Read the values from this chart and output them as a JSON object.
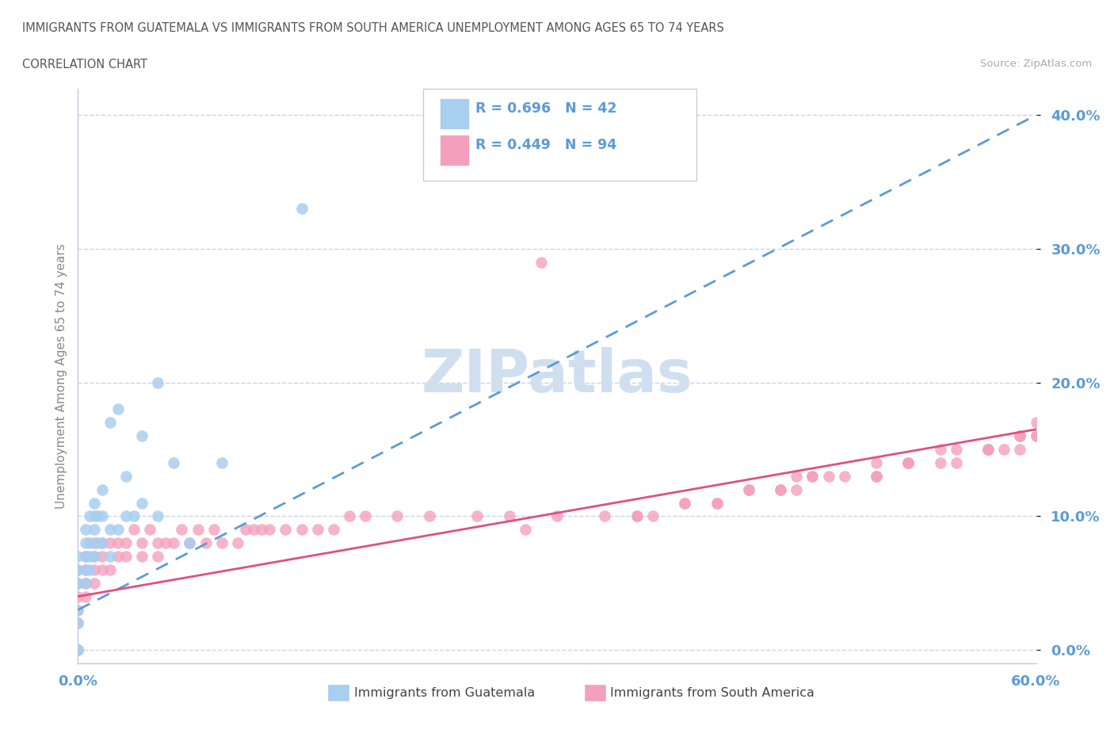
{
  "title_line1": "IMMIGRANTS FROM GUATEMALA VS IMMIGRANTS FROM SOUTH AMERICA UNEMPLOYMENT AMONG AGES 65 TO 74 YEARS",
  "title_line2": "CORRELATION CHART",
  "source": "Source: ZipAtlas.com",
  "ylabel": "Unemployment Among Ages 65 to 74 years",
  "xmin": 0.0,
  "xmax": 0.6,
  "ymin": -0.01,
  "ymax": 0.42,
  "yticks": [
    0.0,
    0.1,
    0.2,
    0.3,
    0.4
  ],
  "ytick_labels": [
    "0.0%",
    "10.0%",
    "20.0%",
    "30.0%",
    "40.0%"
  ],
  "color_guatemala": "#a8cef0",
  "color_southamerica": "#f4a0bc",
  "color_trend_guatemala": "#5b9bd5",
  "color_trend_southamerica": "#e05080",
  "color_grid": "#c8d4e8",
  "color_axis_ticks": "#5b9bd5",
  "watermark_color": "#d0dff0",
  "guatemala_x": [
    0.0,
    0.0,
    0.0,
    0.0,
    0.0,
    0.0,
    0.0,
    0.0,
    0.005,
    0.005,
    0.005,
    0.005,
    0.005,
    0.007,
    0.007,
    0.007,
    0.007,
    0.01,
    0.01,
    0.01,
    0.01,
    0.012,
    0.012,
    0.015,
    0.015,
    0.015,
    0.02,
    0.02,
    0.02,
    0.025,
    0.025,
    0.03,
    0.03,
    0.035,
    0.04,
    0.04,
    0.05,
    0.05,
    0.06,
    0.07,
    0.09,
    0.14
  ],
  "guatemala_y": [
    0.0,
    0.0,
    0.0,
    0.02,
    0.03,
    0.05,
    0.06,
    0.07,
    0.05,
    0.06,
    0.07,
    0.08,
    0.09,
    0.06,
    0.07,
    0.08,
    0.1,
    0.07,
    0.09,
    0.1,
    0.11,
    0.08,
    0.1,
    0.08,
    0.1,
    0.12,
    0.07,
    0.09,
    0.17,
    0.09,
    0.18,
    0.1,
    0.13,
    0.1,
    0.11,
    0.16,
    0.1,
    0.2,
    0.14,
    0.08,
    0.14,
    0.33
  ],
  "southamerica_x": [
    0.0,
    0.0,
    0.0,
    0.0,
    0.0,
    0.0,
    0.0,
    0.005,
    0.005,
    0.005,
    0.005,
    0.01,
    0.01,
    0.01,
    0.01,
    0.015,
    0.015,
    0.015,
    0.02,
    0.02,
    0.025,
    0.025,
    0.03,
    0.03,
    0.035,
    0.04,
    0.04,
    0.045,
    0.05,
    0.05,
    0.055,
    0.06,
    0.065,
    0.07,
    0.075,
    0.08,
    0.085,
    0.09,
    0.1,
    0.105,
    0.11,
    0.115,
    0.12,
    0.13,
    0.14,
    0.15,
    0.16,
    0.17,
    0.18,
    0.2,
    0.22,
    0.25,
    0.27,
    0.3,
    0.33,
    0.35,
    0.38,
    0.4,
    0.42,
    0.44,
    0.46,
    0.48,
    0.5,
    0.52,
    0.54,
    0.55,
    0.57,
    0.58,
    0.59,
    0.6,
    0.45,
    0.46,
    0.5,
    0.52,
    0.55,
    0.57,
    0.59,
    0.6,
    0.35,
    0.36,
    0.38,
    0.4,
    0.42,
    0.44,
    0.45,
    0.47,
    0.5,
    0.52,
    0.54,
    0.57,
    0.59,
    0.6,
    0.28,
    0.29
  ],
  "southamerica_y": [
    0.0,
    0.0,
    0.02,
    0.03,
    0.04,
    0.05,
    0.06,
    0.04,
    0.05,
    0.06,
    0.07,
    0.05,
    0.06,
    0.07,
    0.08,
    0.06,
    0.07,
    0.08,
    0.06,
    0.08,
    0.07,
    0.08,
    0.07,
    0.08,
    0.09,
    0.07,
    0.08,
    0.09,
    0.07,
    0.08,
    0.08,
    0.08,
    0.09,
    0.08,
    0.09,
    0.08,
    0.09,
    0.08,
    0.08,
    0.09,
    0.09,
    0.09,
    0.09,
    0.09,
    0.09,
    0.09,
    0.09,
    0.1,
    0.1,
    0.1,
    0.1,
    0.1,
    0.1,
    0.1,
    0.1,
    0.1,
    0.11,
    0.11,
    0.12,
    0.12,
    0.13,
    0.13,
    0.13,
    0.14,
    0.14,
    0.15,
    0.15,
    0.15,
    0.16,
    0.16,
    0.12,
    0.13,
    0.13,
    0.14,
    0.14,
    0.15,
    0.15,
    0.16,
    0.1,
    0.1,
    0.11,
    0.11,
    0.12,
    0.12,
    0.13,
    0.13,
    0.14,
    0.14,
    0.15,
    0.15,
    0.16,
    0.17,
    0.09,
    0.29
  ],
  "trend_g_x0": 0.0,
  "trend_g_y0": 0.03,
  "trend_g_x1": 0.6,
  "trend_g_y1": 0.4,
  "trend_s_x0": 0.0,
  "trend_s_y0": 0.04,
  "trend_s_x1": 0.6,
  "trend_s_y1": 0.165
}
